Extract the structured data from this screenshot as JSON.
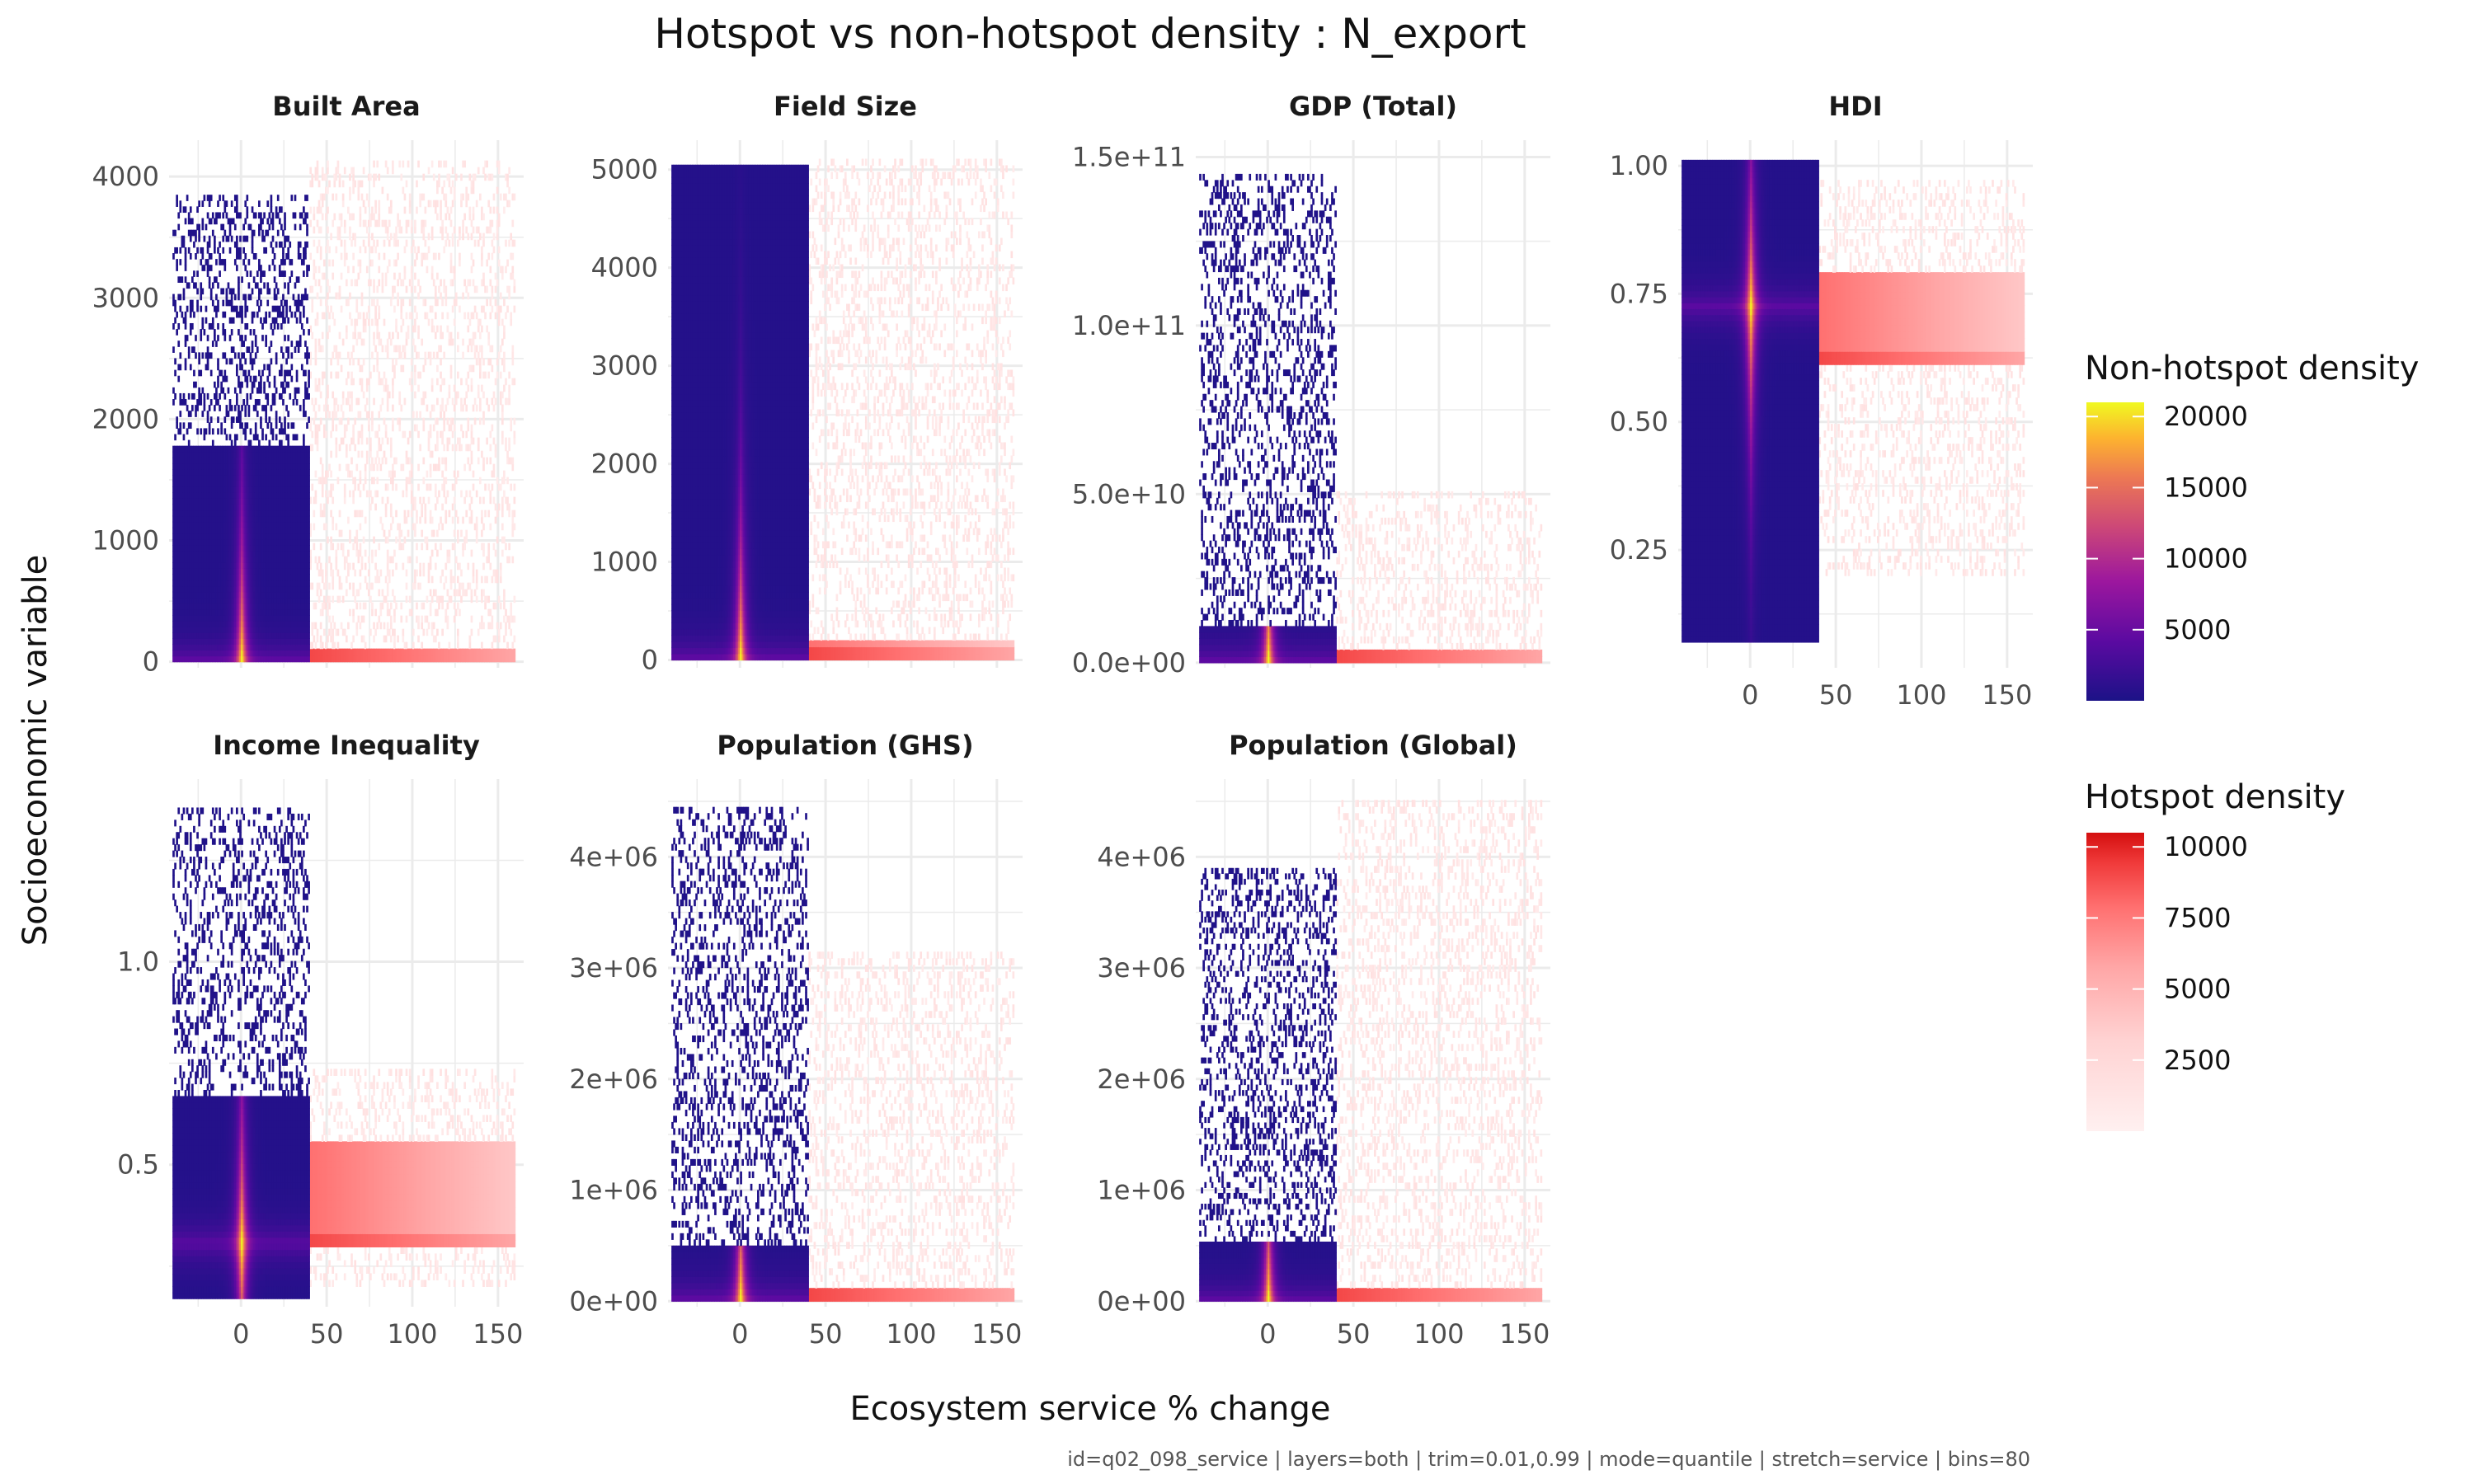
{
  "title": "Hotspot vs non-hotspot density : N_export",
  "xlabel": "Ecosystem service % change",
  "ylabel": "Socioeconomic variable",
  "caption": "id=q02_098_service | layers=both | trim=0.01,0.99 | mode=quantile | stretch=service | bins=80",
  "colors": {
    "non_hotspot_scale": [
      "#1c1287",
      "#5b0aa1",
      "#9c179e",
      "#cc4778",
      "#ed7953",
      "#fdb32f",
      "#f0f921"
    ],
    "hotspot_scale": [
      "#fff0f0",
      "#ffd3d3",
      "#ffa6a6",
      "#ff7070",
      "#f03a3a",
      "#d40f0f"
    ],
    "grid": "#ebebeb"
  },
  "legends": {
    "non_hotspot": {
      "title": "Non-hotspot density",
      "breaks": [
        "20000",
        "15000",
        "10000",
        "5000"
      ],
      "break_values": [
        20000,
        15000,
        10000,
        5000
      ],
      "range": [
        0,
        21000
      ]
    },
    "hotspot": {
      "title": "Hotspot density",
      "breaks": [
        "10000",
        "7500",
        "5000",
        "2500"
      ],
      "break_values": [
        10000,
        7500,
        5000,
        2500
      ],
      "range": [
        0,
        10500
      ]
    }
  },
  "chart_data": [
    {
      "type": "heatmap",
      "title": "Built Area",
      "xlim": [
        -42,
        165
      ],
      "xticks": [
        "0",
        "50",
        "100",
        "150"
      ],
      "xtick_values": [
        0,
        50,
        100,
        150
      ],
      "ylim": [
        -50,
        4300
      ],
      "yticks": [
        "0",
        "1000",
        "2000",
        "3000",
        "4000"
      ],
      "ytick_values": [
        0,
        1000,
        2000,
        3000,
        4000
      ],
      "non_hotspot": {
        "x_range": [
          -40,
          40
        ],
        "y_range": [
          0,
          3850
        ],
        "dense_y_max": 1750,
        "peak_x": 0,
        "peak_y": 0
      },
      "hotspot": {
        "x_range": [
          40,
          160
        ],
        "y_range": [
          0,
          4100
        ],
        "band_y": 0,
        "band_y_max": 100
      }
    },
    {
      "type": "heatmap",
      "title": "Field Size",
      "xlim": [
        -42,
        165
      ],
      "xticks": [
        "0",
        "50",
        "100",
        "150"
      ],
      "xtick_values": [
        0,
        50,
        100,
        150
      ],
      "ylim": [
        -80,
        5300
      ],
      "yticks": [
        "0",
        "1000",
        "2000",
        "3000",
        "4000",
        "5000"
      ],
      "ytick_values": [
        0,
        1000,
        2000,
        3000,
        4000,
        5000
      ],
      "non_hotspot": {
        "x_range": [
          -40,
          40
        ],
        "y_range": [
          0,
          5050
        ],
        "dense_y_max": 5050,
        "peak_x": 0,
        "peak_y": 0
      },
      "hotspot": {
        "x_range": [
          40,
          160
        ],
        "y_range": [
          0,
          5050
        ],
        "band_y": 0,
        "band_y_max": 150
      }
    },
    {
      "type": "heatmap",
      "title": "GDP (Total)",
      "xlim": [
        -42,
        165
      ],
      "xticks": [
        "0",
        "50",
        "100",
        "150"
      ],
      "xtick_values": [
        0,
        50,
        100,
        150
      ],
      "ylim": [
        -1500000000.0,
        155000000000.0
      ],
      "yticks": [
        "0.0e+00",
        "5.0e+10",
        "1.0e+11",
        "1.5e+11"
      ],
      "ytick_values": [
        0,
        50000000000.0,
        100000000000.0,
        150000000000.0
      ],
      "non_hotspot": {
        "x_range": [
          -40,
          40
        ],
        "y_range": [
          0,
          145000000000.0
        ],
        "dense_y_max": 10000000000.0,
        "peak_x": 0,
        "peak_y": 0
      },
      "hotspot": {
        "x_range": [
          40,
          160
        ],
        "y_range": [
          0,
          50000000000.0
        ],
        "band_y": 0,
        "band_y_max": 2000000000.0
      }
    },
    {
      "type": "heatmap",
      "title": "HDI",
      "xlim": [
        -42,
        165
      ],
      "xticks": [
        "0",
        "50",
        "100",
        "150"
      ],
      "xtick_values": [
        0,
        50,
        100,
        150
      ],
      "ylim": [
        0.02,
        1.05
      ],
      "yticks": [
        "0.25",
        "0.50",
        "0.75",
        "1.00"
      ],
      "ytick_values": [
        0.25,
        0.5,
        0.75,
        1.0
      ],
      "non_hotspot": {
        "x_range": [
          -40,
          40
        ],
        "y_range": [
          0.07,
          1.0
        ],
        "dense_y_max": 1.0,
        "peak_x": 0,
        "peak_y": 0.72
      },
      "hotspot": {
        "x_range": [
          40,
          160
        ],
        "y_range": [
          0.2,
          0.97
        ],
        "band_y": 0.62,
        "band_y_max": 0.78
      }
    },
    {
      "type": "heatmap",
      "title": "Income Inequality",
      "xlim": [
        -42,
        165
      ],
      "xticks": [
        "0",
        "50",
        "100",
        "150"
      ],
      "xtick_values": [
        0,
        50,
        100,
        150
      ],
      "ylim": [
        0.15,
        1.45
      ],
      "yticks": [
        "0.5",
        "1.0"
      ],
      "ytick_values": [
        0.5,
        1.0
      ],
      "non_hotspot": {
        "x_range": [
          -40,
          40
        ],
        "y_range": [
          0.17,
          1.38
        ],
        "dense_y_max": 0.66,
        "peak_x": 0,
        "peak_y": 0.3
      },
      "hotspot": {
        "x_range": [
          40,
          160
        ],
        "y_range": [
          0.2,
          0.72
        ],
        "band_y": 0.3,
        "band_y_max": 0.55
      }
    },
    {
      "type": "heatmap",
      "title": "Population (GHS)",
      "xlim": [
        -42,
        165
      ],
      "xticks": [
        "0",
        "50",
        "100",
        "150"
      ],
      "xtick_values": [
        0,
        50,
        100,
        150
      ],
      "ylim": [
        -50000,
        4700000.0
      ],
      "yticks": [
        "0e+00",
        "1e+06",
        "2e+06",
        "3e+06",
        "4e+06"
      ],
      "ytick_values": [
        0,
        1000000.0,
        2000000.0,
        3000000.0,
        4000000.0
      ],
      "non_hotspot": {
        "x_range": [
          -40,
          40
        ],
        "y_range": [
          0,
          4450000.0
        ],
        "dense_y_max": 500000.0,
        "peak_x": 0,
        "peak_y": 0
      },
      "hotspot": {
        "x_range": [
          40,
          160
        ],
        "y_range": [
          0,
          3100000.0
        ],
        "band_y": 0,
        "band_y_max": 100000.0
      }
    },
    {
      "type": "heatmap",
      "title": "Population (Global)",
      "xlim": [
        -42,
        165
      ],
      "xticks": [
        "0",
        "50",
        "100",
        "150"
      ],
      "xtick_values": [
        0,
        50,
        100,
        150
      ],
      "ylim": [
        -50000,
        4700000.0
      ],
      "yticks": [
        "0e+00",
        "1e+06",
        "2e+06",
        "3e+06",
        "4e+06"
      ],
      "ytick_values": [
        0,
        1000000.0,
        2000000.0,
        3000000.0,
        4000000.0
      ],
      "non_hotspot": {
        "x_range": [
          -40,
          40
        ],
        "y_range": [
          0,
          3900000.0
        ],
        "dense_y_max": 500000.0,
        "peak_x": 0,
        "peak_y": 0
      },
      "hotspot": {
        "x_range": [
          40,
          160
        ],
        "y_range": [
          0,
          4500000.0
        ],
        "band_y": 0,
        "band_y_max": 100000.0
      }
    }
  ]
}
